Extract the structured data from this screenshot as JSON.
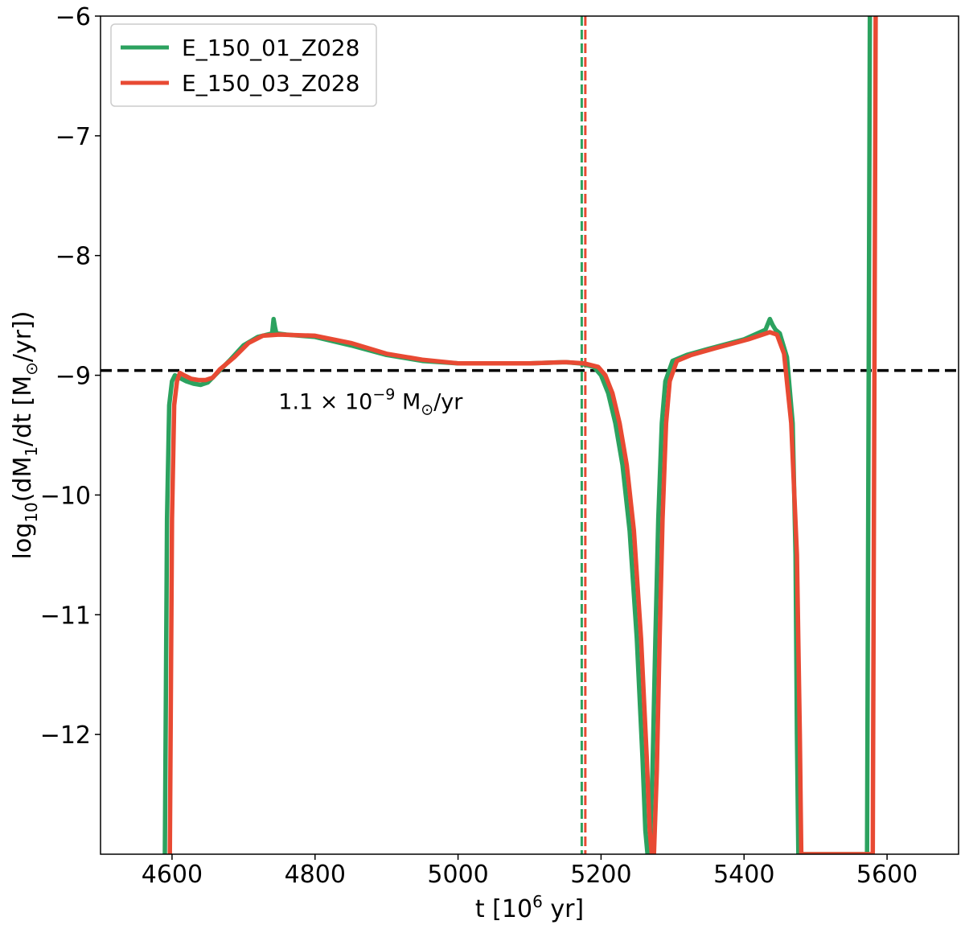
{
  "chart_data": {
    "type": "line",
    "title": "",
    "xlabel": "t [10",
    "xlabel_sup": "6",
    "xlabel_end": " yr]",
    "ylabel": "log",
    "ylabel_sub": "10",
    "ylabel_mid": "(dM",
    "ylabel_sub2": "1",
    "ylabel_end": "/dt [M",
    "ylabel_sun": "⊙",
    "ylabel_tail": "/yr])",
    "xlim": [
      4500,
      5700
    ],
    "ylim": [
      -13,
      -6
    ],
    "xticks": [
      4600,
      4800,
      5000,
      5200,
      5400,
      5600
    ],
    "xtick_labels": [
      "4600",
      "4800",
      "5000",
      "5200",
      "5400",
      "5600"
    ],
    "yticks": [
      -12,
      -11,
      -10,
      -9,
      -8,
      -7,
      -6
    ],
    "ytick_labels": [
      "−12",
      "−11",
      "−10",
      "−9",
      "−8",
      "−7",
      "−6"
    ],
    "grid": false,
    "legend_position": "top-left",
    "colors": {
      "green": "#2ca25f",
      "red": "#e84a33",
      "black": "#000000"
    },
    "series": [
      {
        "name": "E_150_01_Z028",
        "color": "#2ca25f",
        "x": [
          4590,
          4593,
          4596,
          4600,
          4604,
          4610,
          4620,
          4630,
          4640,
          4650,
          4660,
          4680,
          4700,
          4720,
          4740,
          4742,
          4744,
          4746,
          4760,
          4800,
          4850,
          4900,
          4950,
          5000,
          5050,
          5100,
          5150,
          5170,
          5190,
          5200,
          5210,
          5220,
          5230,
          5240,
          5250,
          5258,
          5262,
          5265,
          5268,
          5272,
          5276,
          5280,
          5285,
          5290,
          5300,
          5320,
          5350,
          5400,
          5430,
          5436,
          5440,
          5444,
          5450,
          5460,
          5468,
          5472,
          5474,
          5476,
          5476,
          5572,
          5574,
          5576
        ],
        "y": [
          -13,
          -10.2,
          -9.25,
          -9.05,
          -9.0,
          -9.02,
          -9.05,
          -9.07,
          -9.08,
          -9.06,
          -9.0,
          -8.88,
          -8.75,
          -8.68,
          -8.65,
          -8.53,
          -8.6,
          -8.65,
          -8.66,
          -8.68,
          -8.75,
          -8.83,
          -8.88,
          -8.9,
          -8.9,
          -8.9,
          -8.89,
          -8.9,
          -8.93,
          -9.0,
          -9.15,
          -9.4,
          -9.75,
          -10.3,
          -11.2,
          -12.2,
          -12.8,
          -13,
          -13,
          -12.3,
          -11.2,
          -10.2,
          -9.4,
          -9.05,
          -8.88,
          -8.83,
          -8.78,
          -8.7,
          -8.62,
          -8.53,
          -8.58,
          -8.62,
          -8.65,
          -8.85,
          -9.4,
          -10.5,
          -12.0,
          -13,
          -13,
          -13,
          -9.5,
          -6
        ]
      },
      {
        "name": "E_150_03_Z028",
        "color": "#e84a33",
        "x": [
          4597,
          4600,
          4603,
          4607,
          4611,
          4617,
          4627,
          4637,
          4647,
          4657,
          4667,
          4687,
          4707,
          4727,
          4750,
          4800,
          4850,
          4900,
          4950,
          5000,
          5050,
          5100,
          5150,
          5176,
          5196,
          5206,
          5216,
          5226,
          5236,
          5246,
          5256,
          5264,
          5268,
          5271,
          5274,
          5278,
          5282,
          5286,
          5291,
          5296,
          5306,
          5326,
          5356,
          5406,
          5436,
          5446,
          5456,
          5466,
          5474,
          5478,
          5480,
          5482,
          5482,
          5580,
          5582,
          5584
        ],
        "y": [
          -13,
          -10.2,
          -9.25,
          -9.05,
          -8.98,
          -9.0,
          -9.03,
          -9.04,
          -9.04,
          -9.02,
          -8.95,
          -8.85,
          -8.73,
          -8.67,
          -8.66,
          -8.67,
          -8.73,
          -8.82,
          -8.87,
          -8.9,
          -8.9,
          -8.9,
          -8.89,
          -8.9,
          -8.93,
          -9.0,
          -9.15,
          -9.4,
          -9.75,
          -10.3,
          -11.2,
          -12.2,
          -12.8,
          -13,
          -13,
          -12.3,
          -11.2,
          -10.2,
          -9.4,
          -9.05,
          -8.88,
          -8.83,
          -8.78,
          -8.7,
          -8.64,
          -8.66,
          -8.82,
          -9.4,
          -10.5,
          -12.0,
          -13,
          -13,
          -13,
          -13,
          -9.5,
          -6
        ]
      }
    ],
    "reference_lines": {
      "horizontal": {
        "y": -8.96,
        "color": "#000000",
        "style": "dashed"
      },
      "vertical": [
        {
          "x": 5173,
          "color": "#2ca25f",
          "style": "dashed"
        },
        {
          "x": 5178,
          "color": "#e84a33",
          "style": "dashed"
        }
      ]
    },
    "annotation": {
      "pre": "1.1 × 10",
      "sup": "−9",
      "mid": " M",
      "sun": "⊙",
      "post": "/yr",
      "x": 4750,
      "y": -9.2
    }
  }
}
